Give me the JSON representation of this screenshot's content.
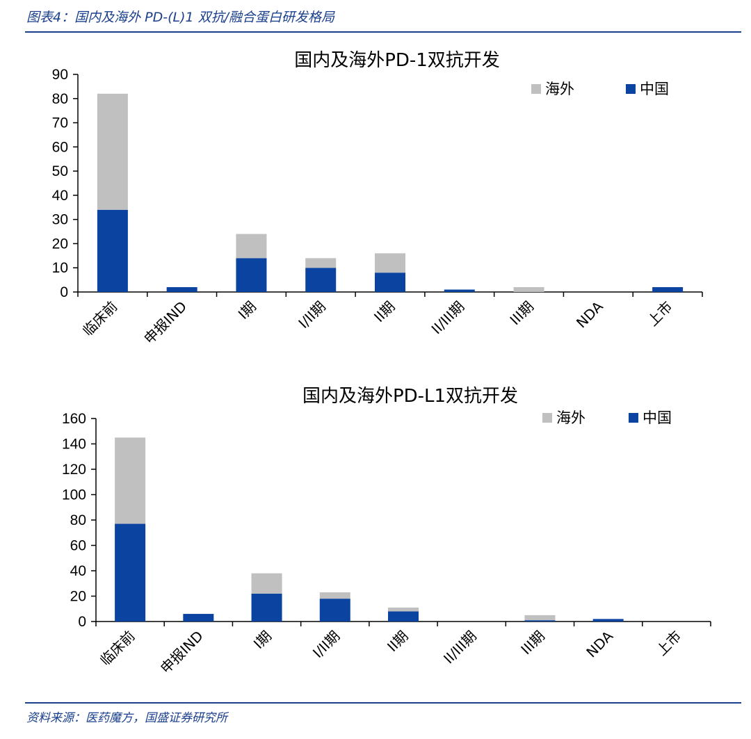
{
  "caption": "图表4：国内及海外 PD-(L)1 双抗/融合蛋白研发格局",
  "source": "资料来源：医药魔方，国盛证券研究所",
  "colors": {
    "overseas": "#c0c0c0",
    "china": "#0a44a0",
    "accent": "#1a3f8c"
  },
  "chart_data": [
    {
      "type": "bar",
      "stacked": true,
      "title": "国内及海外PD-1双抗开发",
      "categories": [
        "临床前",
        "申报IND",
        "I期",
        "I/II期",
        "II期",
        "II/III期",
        "III期",
        "NDA",
        "上市"
      ],
      "series": [
        {
          "name": "中国",
          "values": [
            34,
            2,
            14,
            10,
            8,
            1,
            0,
            0,
            2
          ]
        },
        {
          "name": "海外",
          "values": [
            48,
            0,
            10,
            4,
            8,
            0,
            2,
            0,
            0
          ]
        }
      ],
      "ylim": [
        0,
        90
      ],
      "yticks": [
        0,
        10,
        20,
        30,
        40,
        50,
        60,
        70,
        80,
        90
      ],
      "legend_position": "top-right",
      "legend_order": [
        "海外",
        "中国"
      ]
    },
    {
      "type": "bar",
      "stacked": true,
      "title": "国内及海外PD-L1双抗开发",
      "categories": [
        "临床前",
        "申报IND",
        "I期",
        "I/II期",
        "II期",
        "II/III期",
        "III期",
        "NDA",
        "上市"
      ],
      "series": [
        {
          "name": "中国",
          "values": [
            77,
            6,
            22,
            18,
            8,
            0,
            1,
            2,
            0
          ]
        },
        {
          "name": "海外",
          "values": [
            68,
            0,
            16,
            5,
            3,
            0,
            4,
            0,
            0
          ]
        }
      ],
      "ylim": [
        0,
        160
      ],
      "yticks": [
        0,
        20,
        40,
        60,
        80,
        100,
        120,
        140,
        160
      ],
      "legend_position": "top-right",
      "legend_order": [
        "海外",
        "中国"
      ]
    }
  ]
}
